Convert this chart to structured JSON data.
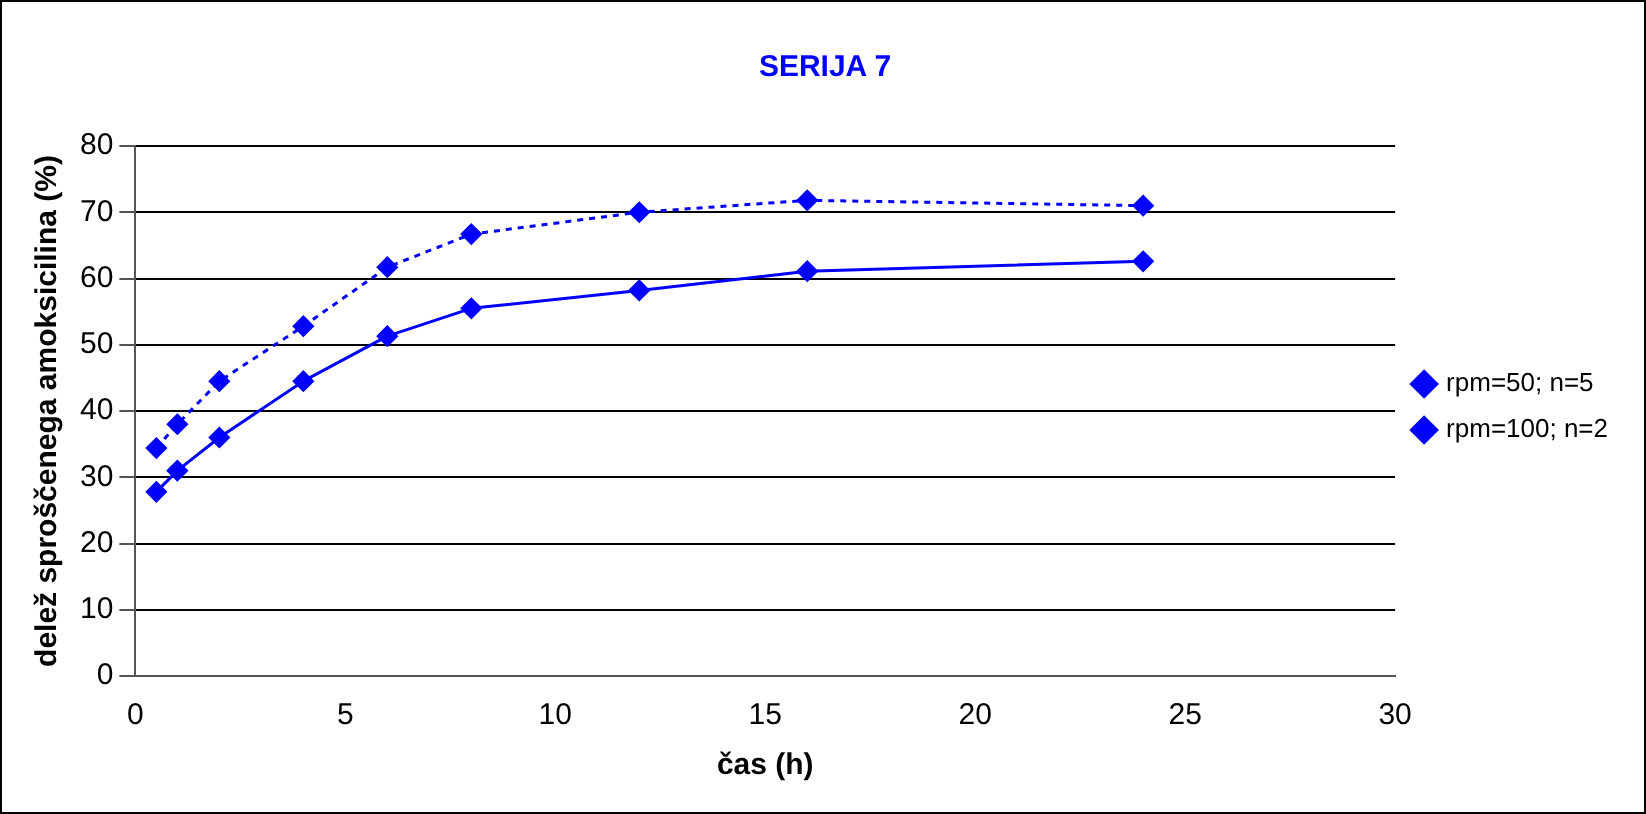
{
  "chart_data": {
    "type": "line",
    "title": "SERIJA 7",
    "xlabel": "čas (h)",
    "ylabel": "delež sproščenega amoksicilina (%)",
    "x": [
      0.5,
      1,
      2,
      4,
      6,
      8,
      12,
      16,
      24
    ],
    "series": [
      {
        "name": "rpm=50; n=5",
        "color": "#0000ff",
        "line_style": "solid",
        "values": [
          27.8,
          31.0,
          36.0,
          44.5,
          51.3,
          55.5,
          58.2,
          61.1,
          62.6
        ]
      },
      {
        "name": "rpm=100; n=2",
        "color": "#0000ff",
        "line_style": "dotted",
        "values": [
          34.4,
          38.0,
          44.5,
          52.8,
          61.7,
          66.7,
          70.0,
          71.8,
          71.0
        ]
      }
    ],
    "xlim": [
      0,
      30
    ],
    "xticks": [
      0,
      5,
      10,
      15,
      20,
      25,
      30
    ],
    "ylim": [
      0,
      80
    ],
    "yticks": [
      0,
      10,
      20,
      30,
      40,
      50,
      60,
      70,
      80
    ],
    "grid": "y",
    "legend": "right",
    "marker": "diamond"
  }
}
